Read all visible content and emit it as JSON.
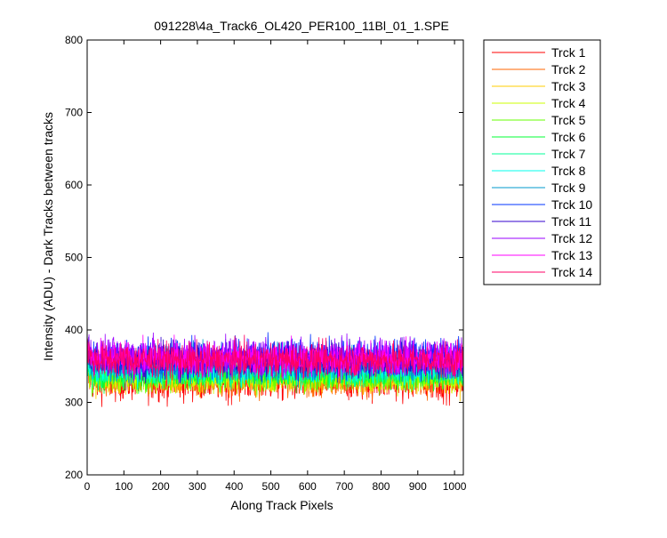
{
  "chart_data": {
    "type": "line",
    "title": "091228\\4a_Track6_OL420_PER100_11Bl_01_1.SPE",
    "xlabel": "Along Track Pixels",
    "ylabel": "Intensity (ADU) - Dark Tracks between tracks",
    "xlim": [
      0,
      1024
    ],
    "ylim": [
      200,
      800
    ],
    "xticks": [
      0,
      100,
      200,
      300,
      400,
      500,
      600,
      700,
      800,
      900,
      1000
    ],
    "yticks": [
      200,
      300,
      400,
      500,
      600,
      700,
      800
    ],
    "grid": false,
    "legend_position": "outside-top-right",
    "num_points": 1024,
    "series": [
      {
        "name": "Trck 1",
        "color": "#ff0000",
        "mean": 330,
        "noise": 14
      },
      {
        "name": "Trck 2",
        "color": "#ff6600",
        "mean": 332,
        "noise": 12
      },
      {
        "name": "Trck 3",
        "color": "#ffcc00",
        "mean": 334,
        "noise": 11
      },
      {
        "name": "Trck 4",
        "color": "#ccff00",
        "mean": 336,
        "noise": 11
      },
      {
        "name": "Trck 5",
        "color": "#66ff00",
        "mean": 338,
        "noise": 11
      },
      {
        "name": "Trck 6",
        "color": "#00ff33",
        "mean": 341,
        "noise": 11
      },
      {
        "name": "Trck 7",
        "color": "#00ff99",
        "mean": 344,
        "noise": 11
      },
      {
        "name": "Trck 8",
        "color": "#00ffee",
        "mean": 347,
        "noise": 11
      },
      {
        "name": "Trck 9",
        "color": "#0099cc",
        "mean": 352,
        "noise": 12
      },
      {
        "name": "Trck 10",
        "color": "#0033ff",
        "mean": 362,
        "noise": 13
      },
      {
        "name": "Trck 11",
        "color": "#3300cc",
        "mean": 358,
        "noise": 12
      },
      {
        "name": "Trck 12",
        "color": "#9900ff",
        "mean": 364,
        "noise": 13
      },
      {
        "name": "Trck 13",
        "color": "#ff00ff",
        "mean": 360,
        "noise": 12
      },
      {
        "name": "Trck 14",
        "color": "#ff0066",
        "mean": 358,
        "noise": 12
      }
    ]
  }
}
